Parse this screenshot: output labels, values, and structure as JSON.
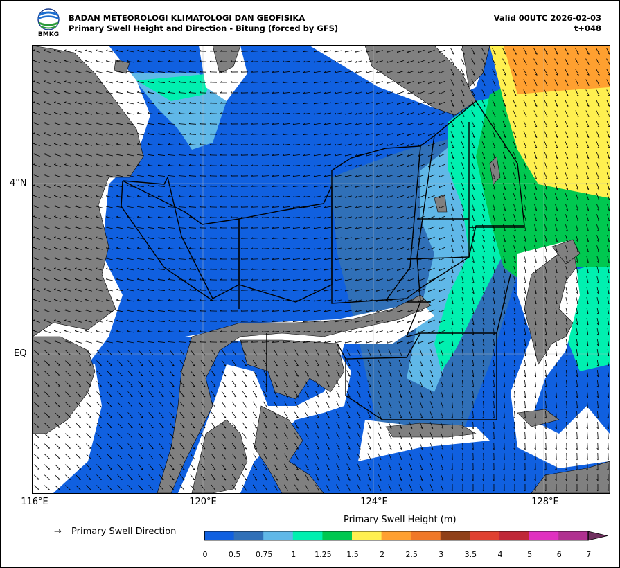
{
  "header": {
    "logo_text": "BMKG",
    "title_line1": "BADAN METEOROLOGI KLIMATOLOGI DAN GEOFISIKA",
    "title_line2": "Primary Swell Height and Direction - Bitung (forced by GFS)",
    "valid_line": "Valid 00UTC 2026-02-03",
    "lead_line": "t+048"
  },
  "map": {
    "x_ticks": [
      "116°E",
      "120°E",
      "124°E",
      "128°E"
    ],
    "y_ticks": [
      "4°N",
      "EQ"
    ],
    "land_color": "#808080",
    "sea_colors": {
      "dark_blue": "#1060e0",
      "steel_blue": "#3070b8",
      "light_blue": "#60b8e8",
      "aqua": "#00f0b0",
      "green": "#00c850",
      "yellow": "#fff050",
      "orange": "#ffa030"
    }
  },
  "legend": {
    "direction_symbol": "→",
    "direction_label": "Primary Swell Direction"
  },
  "colorbar": {
    "title": "Primary Swell Height (m)",
    "labels": [
      "0",
      "0.5",
      "0.75",
      "1",
      "1.25",
      "1.5",
      "2",
      "2.5",
      "3",
      "3.5",
      "4",
      "5",
      "6",
      "7"
    ],
    "colors": [
      "#1060e0",
      "#3070b8",
      "#60b8e8",
      "#00f0b0",
      "#00c850",
      "#fff050",
      "#ffa030",
      "#f07828",
      "#904018",
      "#e04030",
      "#c02838",
      "#e030c0",
      "#b03090",
      "#703060"
    ]
  }
}
